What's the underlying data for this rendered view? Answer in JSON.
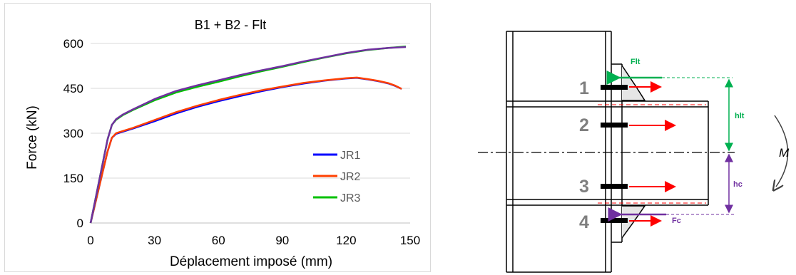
{
  "chart_data": {
    "type": "line",
    "title": "B1 + B2 - Flt",
    "xlabel": "Déplacement imposé (mm)",
    "ylabel": "Force (kN)",
    "xlim": [
      0,
      150
    ],
    "ylim": [
      0,
      600
    ],
    "xticks": [
      0,
      30,
      60,
      90,
      120,
      150
    ],
    "yticks": [
      0,
      150,
      300,
      450,
      600
    ],
    "grid": "horizontal",
    "legend_position": "bottom-right",
    "series": [
      {
        "name": "JR1",
        "color": "#0000ff",
        "x": [
          0,
          2,
          5,
          8,
          10,
          12,
          15,
          20,
          30,
          40,
          50,
          60,
          70,
          80,
          90,
          100,
          110,
          120,
          125,
          130,
          135,
          140,
          143,
          146
        ],
        "y": [
          0,
          60,
          150,
          240,
          285,
          298,
          305,
          316,
          340,
          366,
          388,
          407,
          424,
          440,
          454,
          466,
          476,
          483,
          485,
          480,
          474,
          466,
          458,
          448
        ]
      },
      {
        "name": "JR2",
        "color": "#ff4000",
        "x": [
          0,
          2,
          5,
          8,
          10,
          12,
          15,
          20,
          30,
          40,
          50,
          60,
          70,
          80,
          90,
          100,
          110,
          120,
          125,
          130,
          135,
          140,
          143,
          146
        ],
        "y": [
          0,
          60,
          150,
          240,
          285,
          300,
          307,
          318,
          344,
          370,
          392,
          411,
          428,
          443,
          456,
          468,
          477,
          484,
          486,
          481,
          475,
          467,
          459,
          448
        ]
      },
      {
        "name": "JR3",
        "color": "#00c000",
        "x": [
          0,
          2,
          5,
          8,
          10,
          12,
          15,
          20,
          30,
          40,
          50,
          60,
          70,
          80,
          90,
          100,
          110,
          120,
          130,
          140,
          148
        ],
        "y": [
          0,
          70,
          175,
          280,
          328,
          345,
          360,
          378,
          410,
          436,
          455,
          472,
          490,
          507,
          522,
          538,
          553,
          567,
          578,
          585,
          590
        ]
      },
      {
        "name": "",
        "color": "#7030a0",
        "x": [
          0,
          2,
          5,
          8,
          10,
          12,
          15,
          20,
          30,
          40,
          50,
          60,
          70,
          80,
          90,
          100,
          110,
          120,
          130,
          140,
          148
        ],
        "y": [
          0,
          70,
          175,
          280,
          328,
          347,
          362,
          380,
          414,
          441,
          460,
          477,
          494,
          510,
          524,
          540,
          554,
          568,
          579,
          585,
          588
        ]
      }
    ]
  },
  "diagram": {
    "bolt_labels": [
      "1",
      "2",
      "3",
      "4"
    ],
    "flt_label": "Flt",
    "fc_label": "Fc",
    "hlt_label": "hlt",
    "hc_label": "hc",
    "m_label": "M",
    "colors": {
      "green": "#00b050",
      "purple": "#7030a0",
      "red": "#ff0000",
      "grey": "#7f7f7f"
    }
  }
}
